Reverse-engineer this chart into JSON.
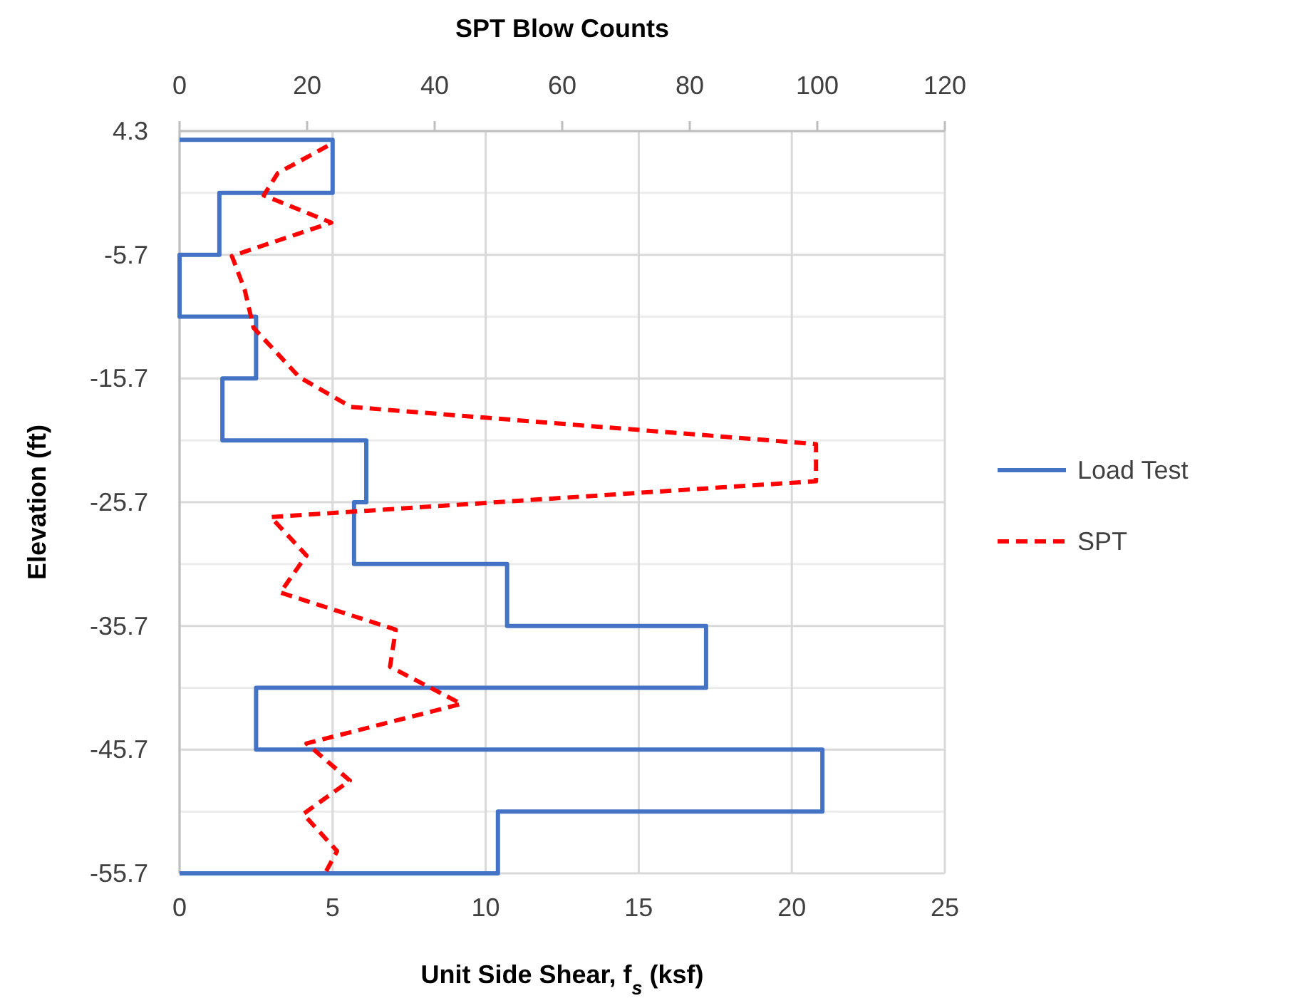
{
  "chart_data": {
    "type": "line",
    "xlabel": "Unit Side Shear, f$_{s}$ (ksf)",
    "x2label": "SPT Blow Counts",
    "ylabel": "Elevation (ft)",
    "xlim": [
      0,
      25
    ],
    "xticks": [
      0,
      5,
      10,
      15,
      20,
      25
    ],
    "x2lim": [
      0,
      120
    ],
    "x2ticks": [
      0,
      20,
      40,
      60,
      80,
      100,
      120
    ],
    "ylim": [
      -55.7,
      4.3
    ],
    "yticks": [
      4.3,
      {
        "value": -0.7,
        "label": null
      },
      -5.7,
      {
        "value": -10.7,
        "label": null
      },
      -15.7,
      {
        "value": -20.7,
        "label": null
      },
      -25.7,
      {
        "value": -30.7,
        "label": null
      },
      -35.7,
      {
        "value": -40.7,
        "label": null
      },
      -45.7,
      {
        "value": -50.7,
        "label": null
      },
      -55.7
    ],
    "grid": true,
    "legend": "right",
    "series": [
      {
        "name": "Load Test",
        "color": "#4472c4",
        "line_style": "solid",
        "x": [
          0,
          5.0,
          5.0,
          1.3,
          1.3,
          0,
          0,
          2.5,
          2.5,
          1.4,
          1.4,
          6.1,
          6.1,
          5.7,
          5.7,
          10.7,
          10.7,
          17.2,
          17.2,
          2.5,
          2.5,
          21.0,
          21.0,
          10.4,
          10.4,
          0
        ],
        "values": [
          3.6,
          3.6,
          -0.7,
          -0.7,
          -5.7,
          -5.7,
          -10.7,
          -10.7,
          -15.7,
          -15.7,
          -20.7,
          -20.7,
          -25.7,
          -25.7,
          -30.7,
          -30.7,
          -35.7,
          -35.7,
          -40.7,
          -40.7,
          -45.7,
          -45.7,
          -50.7,
          -50.7,
          -55.7,
          -55.7
        ]
      },
      {
        "name": "SPT",
        "color": "#ff0000",
        "line_style": "dashed",
        "axis": "x2",
        "x": [
          23.2,
          15.4,
          13.2,
          23.8,
          8.2,
          10.2,
          11.6,
          18.8,
          26.9,
          99.8,
          99.8,
          14.3,
          19.9,
          15.8,
          33.9,
          33.0,
          44.2,
          19.9,
          26.7,
          19.4,
          24.7,
          22.8
        ],
        "values": [
          3.1,
          0.9,
          -0.9,
          -3.1,
          -5.8,
          -8.5,
          -11.6,
          -15.6,
          -18.0,
          -21.0,
          -24.0,
          -26.9,
          -30.0,
          -33.0,
          -36.0,
          -39.0,
          -42.0,
          -45.2,
          -48.2,
          -50.9,
          -53.9,
          -55.7
        ]
      }
    ]
  }
}
